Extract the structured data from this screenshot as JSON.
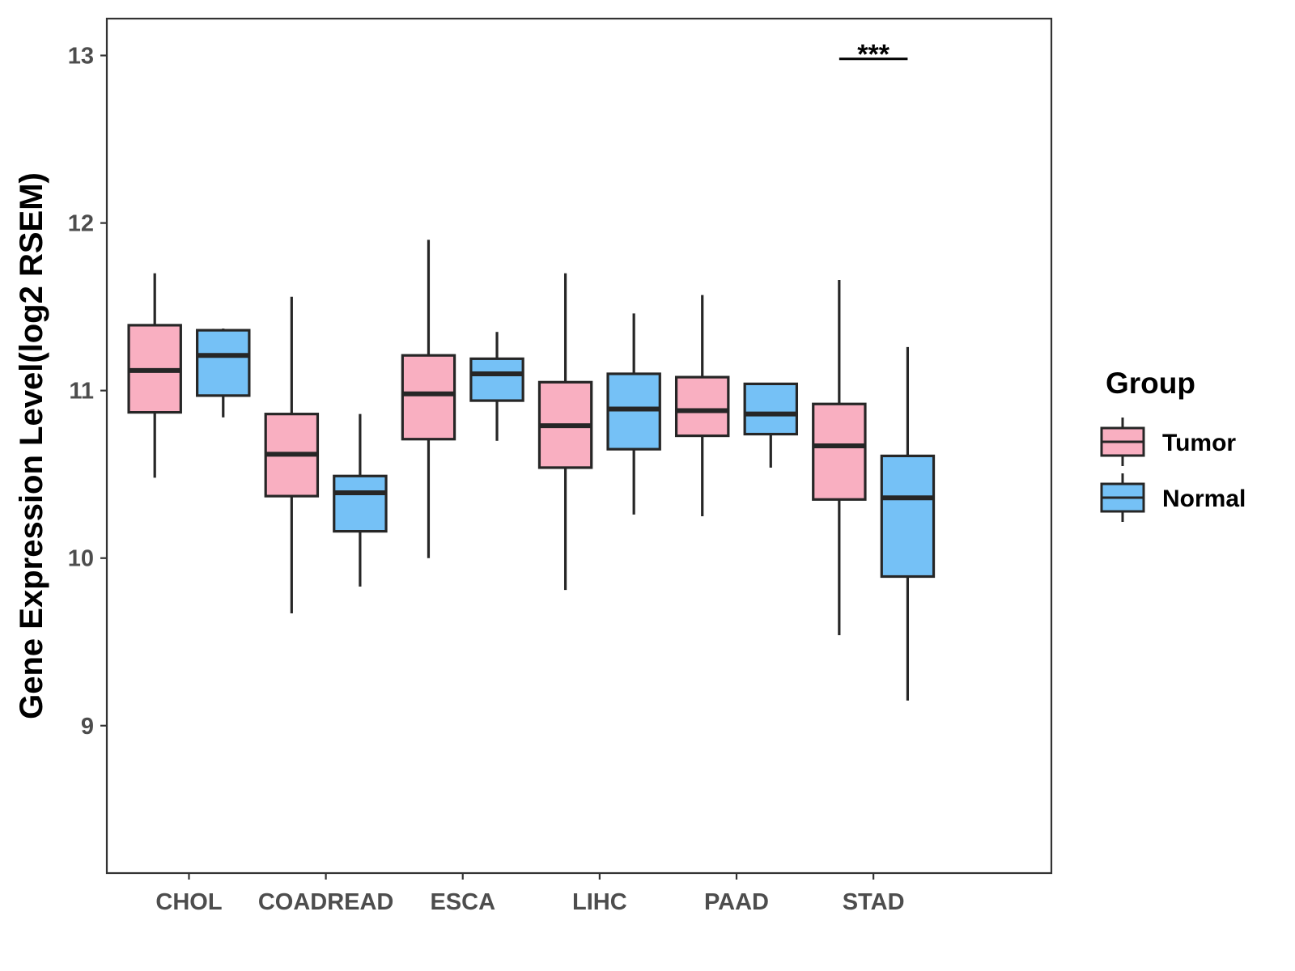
{
  "chart_data": {
    "type": "boxplot",
    "title": "",
    "xlabel": "",
    "ylabel": "Gene Expression Level(log2 RSEM)",
    "ylim": [
      8.12,
      13.22
    ],
    "yticks": [
      9,
      10,
      11,
      12,
      13
    ],
    "categories": [
      "CHOL",
      "COADREAD",
      "ESCA",
      "LIHC",
      "PAAD",
      "STAD"
    ],
    "legend": {
      "title": "Group",
      "position": "right"
    },
    "colors": {
      "Tumor": "#F9AFC1",
      "Normal": "#75C1F6",
      "stroke": "#262626"
    },
    "series": [
      {
        "name": "Tumor",
        "boxes": [
          {
            "whisker_low": 10.48,
            "q1": 10.87,
            "median": 11.12,
            "q3": 11.39,
            "whisker_high": 11.7
          },
          {
            "whisker_low": 9.67,
            "q1": 10.37,
            "median": 10.62,
            "q3": 10.86,
            "whisker_high": 11.56
          },
          {
            "whisker_low": 10.0,
            "q1": 10.71,
            "median": 10.98,
            "q3": 11.21,
            "whisker_high": 11.9
          },
          {
            "whisker_low": 9.81,
            "q1": 10.54,
            "median": 10.79,
            "q3": 11.05,
            "whisker_high": 11.7
          },
          {
            "whisker_low": 10.25,
            "q1": 10.73,
            "median": 10.88,
            "q3": 11.08,
            "whisker_high": 11.57
          },
          {
            "whisker_low": 9.54,
            "q1": 10.35,
            "median": 10.67,
            "q3": 10.92,
            "whisker_high": 11.66
          }
        ]
      },
      {
        "name": "Normal",
        "boxes": [
          {
            "whisker_low": 10.84,
            "q1": 10.97,
            "median": 11.21,
            "q3": 11.36,
            "whisker_high": 11.37
          },
          {
            "whisker_low": 9.83,
            "q1": 10.16,
            "median": 10.39,
            "q3": 10.49,
            "whisker_high": 10.86
          },
          {
            "whisker_low": 10.7,
            "q1": 10.94,
            "median": 11.1,
            "q3": 11.19,
            "whisker_high": 11.35
          },
          {
            "whisker_low": 10.26,
            "q1": 10.65,
            "median": 10.89,
            "q3": 11.1,
            "whisker_high": 11.46
          },
          {
            "whisker_low": 10.54,
            "q1": 10.74,
            "median": 10.86,
            "q3": 11.04,
            "whisker_high": 11.04
          },
          {
            "whisker_low": 9.15,
            "q1": 9.89,
            "median": 10.36,
            "q3": 10.61,
            "whisker_high": 11.26
          }
        ]
      }
    ],
    "annotations": [
      {
        "category": "STAD",
        "text": "***",
        "line_y": 12.98
      }
    ]
  }
}
